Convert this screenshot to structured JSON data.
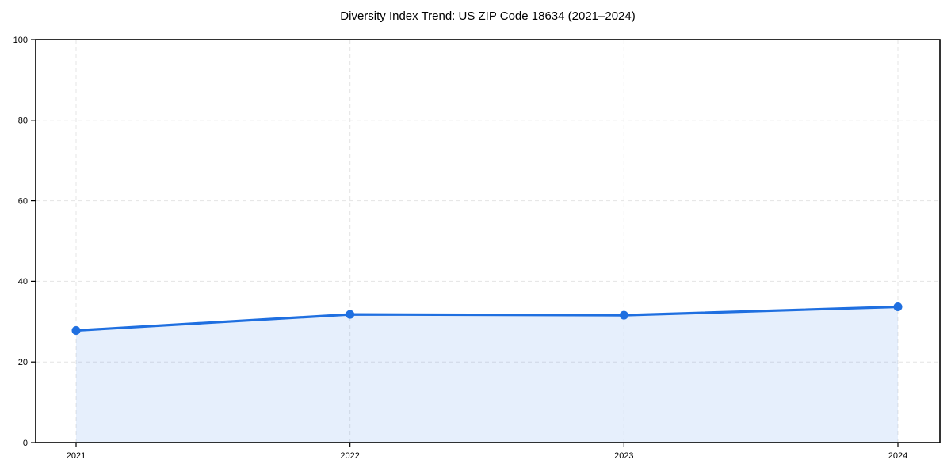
{
  "chart_data": {
    "type": "area",
    "title": "Diversity Index Trend: US ZIP Code 18634 (2021–2024)",
    "categories": [
      "2021",
      "2022",
      "2023",
      "2024"
    ],
    "series": [
      {
        "name": "Diversity Index",
        "values": [
          27.8,
          31.8,
          31.6,
          33.7
        ]
      }
    ],
    "xlabel": "",
    "ylabel": "",
    "ylim": [
      0,
      100
    ],
    "yticks": [
      0,
      20,
      40,
      60,
      80,
      100
    ],
    "grid": true,
    "grid_style": "dashed",
    "legend_position": "none",
    "colors": {
      "line": "#1f6fe0",
      "marker": "#1f6fe0",
      "fill": "#1f6fe0",
      "grid": "#e4e4e4",
      "spine": "#000000",
      "text": "#000000",
      "background": "#ffffff"
    },
    "fill_opacity": 0.11
  }
}
